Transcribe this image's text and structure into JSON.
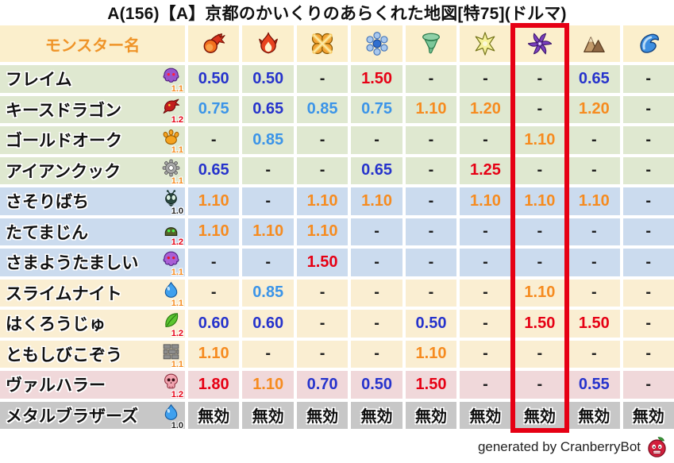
{
  "title": "A(156)【A】京都のかいくりのあらくれた地図[特75](ドルマ)",
  "footer": {
    "label": "generated by CranberryBot",
    "icon": "cranberry-bot-icon"
  },
  "colors": {
    "header_label": "#ef9428",
    "highlight": "#e60014",
    "row_backgrounds": {
      "header": "#fbefcc",
      "green": "#dfe8d0",
      "blue": "#cbdbee",
      "cream": "#faeed2",
      "pink": "#f0d8da",
      "gray": "#c7c7c7"
    },
    "value_colors": {
      "blue": "#2633cc",
      "lightblue": "#3b94e8",
      "orange": "#f68b1f",
      "red": "#e60014",
      "dash": "#1f1f1f",
      "black": "#0f0f0f"
    },
    "level_colors": {
      "orange": "#f68b1f",
      "red": "#e60014",
      "black": "#222222"
    }
  },
  "chart_data": {
    "type": "table",
    "title": "A(156)【A】京都のかいくりのあらくれた地図[特75](ドルマ)",
    "monster_column_label": "モンスター名",
    "element_icons": [
      "fireball-icon",
      "flame-icon",
      "explosion-icon",
      "snowflake-icon",
      "tornado-icon",
      "spark-icon",
      "dark-pinwheel-icon",
      "mountain-icon",
      "wave-icon"
    ],
    "highlighted_element_index": 6,
    "rows": [
      {
        "name": "フレイム",
        "monster_icon": "purple-ghost-icon",
        "level": "1.1",
        "level_color": "orange",
        "row_group": "green",
        "cells": [
          {
            "t": "0.50",
            "c": "blue"
          },
          {
            "t": "0.50",
            "c": "blue"
          },
          {
            "t": "-",
            "c": "dash"
          },
          {
            "t": "1.50",
            "c": "red"
          },
          {
            "t": "-",
            "c": "dash"
          },
          {
            "t": "-",
            "c": "dash"
          },
          {
            "t": "-",
            "c": "dash"
          },
          {
            "t": "0.65",
            "c": "blue"
          },
          {
            "t": "-",
            "c": "dash"
          }
        ]
      },
      {
        "name": "キースドラゴン",
        "monster_icon": "red-dragon-icon",
        "level": "1.2",
        "level_color": "red",
        "row_group": "green",
        "cells": [
          {
            "t": "0.75",
            "c": "lightblue"
          },
          {
            "t": "0.65",
            "c": "blue"
          },
          {
            "t": "0.85",
            "c": "lightblue"
          },
          {
            "t": "0.75",
            "c": "lightblue"
          },
          {
            "t": "1.10",
            "c": "orange"
          },
          {
            "t": "1.20",
            "c": "orange"
          },
          {
            "t": "-",
            "c": "dash"
          },
          {
            "t": "1.20",
            "c": "orange"
          },
          {
            "t": "-",
            "c": "dash"
          }
        ]
      },
      {
        "name": "ゴールドオーク",
        "monster_icon": "orange-paw-icon",
        "level": "1.1",
        "level_color": "orange",
        "row_group": "green",
        "cells": [
          {
            "t": "-",
            "c": "dash"
          },
          {
            "t": "0.85",
            "c": "lightblue"
          },
          {
            "t": "-",
            "c": "dash"
          },
          {
            "t": "-",
            "c": "dash"
          },
          {
            "t": "-",
            "c": "dash"
          },
          {
            "t": "-",
            "c": "dash"
          },
          {
            "t": "1.10",
            "c": "orange"
          },
          {
            "t": "-",
            "c": "dash"
          },
          {
            "t": "-",
            "c": "dash"
          }
        ]
      },
      {
        "name": "アイアンクック",
        "monster_icon": "gray-gear-icon",
        "level": "1.1",
        "level_color": "orange",
        "row_group": "green",
        "cells": [
          {
            "t": "0.65",
            "c": "blue"
          },
          {
            "t": "-",
            "c": "dash"
          },
          {
            "t": "-",
            "c": "dash"
          },
          {
            "t": "0.65",
            "c": "blue"
          },
          {
            "t": "-",
            "c": "dash"
          },
          {
            "t": "1.25",
            "c": "red"
          },
          {
            "t": "-",
            "c": "dash"
          },
          {
            "t": "-",
            "c": "dash"
          },
          {
            "t": "-",
            "c": "dash"
          }
        ]
      },
      {
        "name": "さそりばち",
        "monster_icon": "dark-fly-icon",
        "level": "1.0",
        "level_color": "black",
        "row_group": "blue",
        "cells": [
          {
            "t": "1.10",
            "c": "orange"
          },
          {
            "t": "-",
            "c": "dash"
          },
          {
            "t": "1.10",
            "c": "orange"
          },
          {
            "t": "1.10",
            "c": "orange"
          },
          {
            "t": "-",
            "c": "dash"
          },
          {
            "t": "1.10",
            "c": "orange"
          },
          {
            "t": "1.10",
            "c": "orange"
          },
          {
            "t": "1.10",
            "c": "orange"
          },
          {
            "t": "-",
            "c": "dash"
          }
        ]
      },
      {
        "name": "たてまじん",
        "monster_icon": "green-helmet-icon",
        "level": "1.2",
        "level_color": "red",
        "row_group": "blue",
        "cells": [
          {
            "t": "1.10",
            "c": "orange"
          },
          {
            "t": "1.10",
            "c": "orange"
          },
          {
            "t": "1.10",
            "c": "orange"
          },
          {
            "t": "-",
            "c": "dash"
          },
          {
            "t": "-",
            "c": "dash"
          },
          {
            "t": "-",
            "c": "dash"
          },
          {
            "t": "-",
            "c": "dash"
          },
          {
            "t": "-",
            "c": "dash"
          },
          {
            "t": "-",
            "c": "dash"
          }
        ]
      },
      {
        "name": "さまようたましい",
        "monster_icon": "purple-spirit-icon",
        "level": "1.1",
        "level_color": "orange",
        "row_group": "blue",
        "cells": [
          {
            "t": "-",
            "c": "dash"
          },
          {
            "t": "-",
            "c": "dash"
          },
          {
            "t": "1.50",
            "c": "red"
          },
          {
            "t": "-",
            "c": "dash"
          },
          {
            "t": "-",
            "c": "dash"
          },
          {
            "t": "-",
            "c": "dash"
          },
          {
            "t": "-",
            "c": "dash"
          },
          {
            "t": "-",
            "c": "dash"
          },
          {
            "t": "-",
            "c": "dash"
          }
        ]
      },
      {
        "name": "スライムナイト",
        "monster_icon": "blue-slime-icon",
        "level": "1.1",
        "level_color": "orange",
        "row_group": "cream",
        "cells": [
          {
            "t": "-",
            "c": "dash"
          },
          {
            "t": "0.85",
            "c": "lightblue"
          },
          {
            "t": "-",
            "c": "dash"
          },
          {
            "t": "-",
            "c": "dash"
          },
          {
            "t": "-",
            "c": "dash"
          },
          {
            "t": "-",
            "c": "dash"
          },
          {
            "t": "1.10",
            "c": "orange"
          },
          {
            "t": "-",
            "c": "dash"
          },
          {
            "t": "-",
            "c": "dash"
          }
        ]
      },
      {
        "name": "はくろうじゅ",
        "monster_icon": "green-leaf-icon",
        "level": "1.2",
        "level_color": "red",
        "row_group": "cream",
        "cells": [
          {
            "t": "0.60",
            "c": "blue"
          },
          {
            "t": "0.60",
            "c": "blue"
          },
          {
            "t": "-",
            "c": "dash"
          },
          {
            "t": "-",
            "c": "dash"
          },
          {
            "t": "0.50",
            "c": "blue"
          },
          {
            "t": "-",
            "c": "dash"
          },
          {
            "t": "1.50",
            "c": "red"
          },
          {
            "t": "1.50",
            "c": "red"
          },
          {
            "t": "-",
            "c": "dash"
          }
        ]
      },
      {
        "name": "ともしびこぞう",
        "monster_icon": "brick-icon",
        "level": "1.1",
        "level_color": "orange",
        "row_group": "cream",
        "cells": [
          {
            "t": "1.10",
            "c": "orange"
          },
          {
            "t": "-",
            "c": "dash"
          },
          {
            "t": "-",
            "c": "dash"
          },
          {
            "t": "-",
            "c": "dash"
          },
          {
            "t": "1.10",
            "c": "orange"
          },
          {
            "t": "-",
            "c": "dash"
          },
          {
            "t": "-",
            "c": "dash"
          },
          {
            "t": "-",
            "c": "dash"
          },
          {
            "t": "-",
            "c": "dash"
          }
        ]
      },
      {
        "name": "ヴァルハラー",
        "monster_icon": "pink-skull-icon",
        "level": "1.2",
        "level_color": "red",
        "row_group": "pink",
        "cells": [
          {
            "t": "1.80",
            "c": "red"
          },
          {
            "t": "1.10",
            "c": "orange"
          },
          {
            "t": "0.70",
            "c": "blue"
          },
          {
            "t": "0.50",
            "c": "blue"
          },
          {
            "t": "1.50",
            "c": "red"
          },
          {
            "t": "-",
            "c": "dash"
          },
          {
            "t": "-",
            "c": "dash"
          },
          {
            "t": "0.55",
            "c": "blue"
          },
          {
            "t": "-",
            "c": "dash"
          }
        ]
      },
      {
        "name": "メタルブラザーズ",
        "monster_icon": "blue-slime-icon",
        "level": "1.0",
        "level_color": "black",
        "row_group": "gray",
        "cells": [
          {
            "t": "無効",
            "c": "black"
          },
          {
            "t": "無効",
            "c": "black"
          },
          {
            "t": "無効",
            "c": "black"
          },
          {
            "t": "無効",
            "c": "black"
          },
          {
            "t": "無効",
            "c": "black"
          },
          {
            "t": "無効",
            "c": "black"
          },
          {
            "t": "無効",
            "c": "black"
          },
          {
            "t": "無効",
            "c": "black"
          },
          {
            "t": "無効",
            "c": "black"
          }
        ]
      }
    ]
  }
}
